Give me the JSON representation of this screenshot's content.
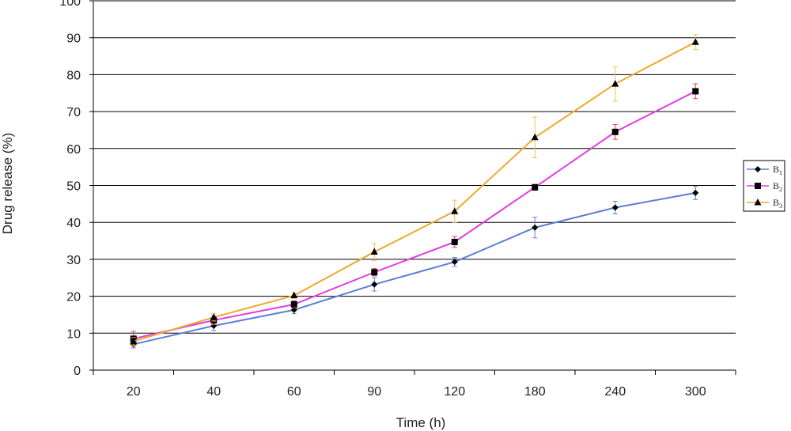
{
  "chart_data": {
    "type": "line",
    "title": "",
    "xlabel": "Time (h)",
    "ylabel": "Drug release (%)",
    "categories": [
      "20",
      "40",
      "60",
      "90",
      "120",
      "180",
      "240",
      "300"
    ],
    "ylim": [
      0,
      100
    ],
    "yticks": [
      0,
      10,
      20,
      30,
      40,
      50,
      60,
      70,
      80,
      90,
      100
    ],
    "grid": "horizontal",
    "legend_position": "right",
    "series": [
      {
        "name": "B1",
        "label_base": "B",
        "label_sub": "1",
        "marker": "diamond",
        "color": "#5b7fd6",
        "error_color": "#5b7fd6",
        "values": [
          7,
          12,
          16.3,
          23.2,
          29.3,
          38.6,
          44,
          48
        ],
        "errors": [
          1,
          1.3,
          1,
          1.8,
          1.2,
          2.8,
          1.7,
          1.8
        ]
      },
      {
        "name": "B2",
        "label_base": "B",
        "label_sub": "2",
        "marker": "square",
        "color": "#e03ce0",
        "error_color": "#e0405a",
        "values": [
          8.5,
          13.5,
          17.8,
          26.5,
          34.7,
          49.5,
          64.5,
          75.5
        ],
        "errors": [
          2,
          1.2,
          1,
          1,
          1.5,
          0.8,
          2,
          2
        ]
      },
      {
        "name": "B3",
        "label_base": "B",
        "label_sub": "3",
        "marker": "triangle",
        "color": "#f0a830",
        "error_color": "#f0c050",
        "values": [
          7.8,
          14.3,
          20.2,
          32,
          43,
          63,
          77.5,
          88.8
        ],
        "errors": [
          1,
          1,
          0.7,
          2.3,
          3,
          5.5,
          4.7,
          2
        ]
      }
    ]
  }
}
